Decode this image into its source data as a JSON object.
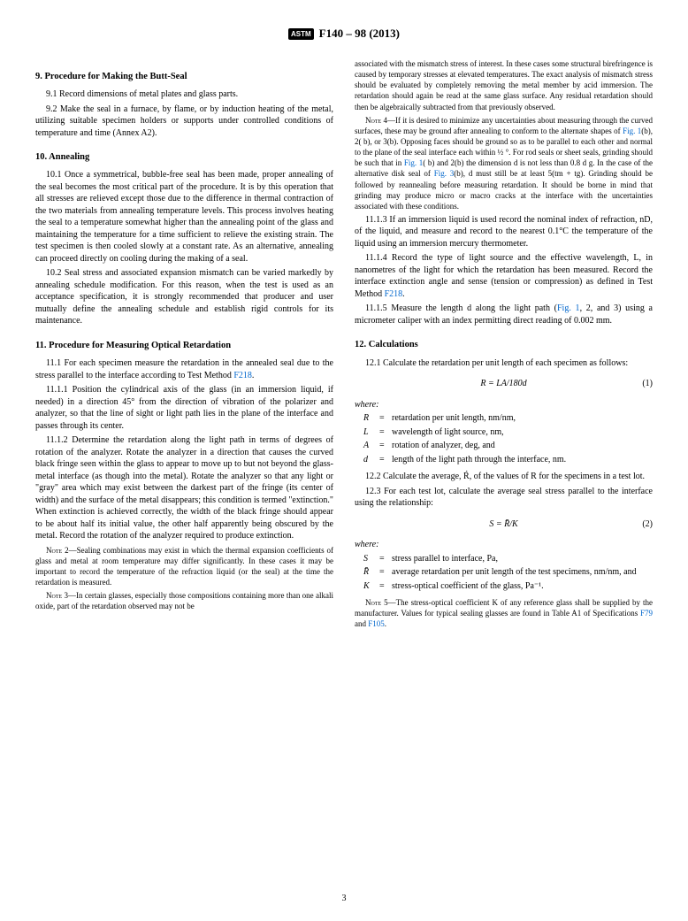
{
  "header": {
    "logo_text": "ASTM",
    "designation": "F140 – 98 (2013)"
  },
  "sections": {
    "s9": {
      "title": "9.  Procedure for Making the Butt-Seal",
      "p1": "9.1  Record dimensions of metal plates and glass parts.",
      "p2": "9.2  Make the seal in a furnace, by flame, or by induction heating of the metal, utilizing suitable specimen holders or supports under controlled conditions of temperature and time (Annex A2)."
    },
    "s10": {
      "title": "10.  Annealing",
      "p1": "10.1  Once a symmetrical, bubble-free seal has been made, proper annealing of the seal becomes the most critical part of the procedure. It is by this operation that all stresses are relieved except those due to the difference in thermal contraction of the two materials from annealing temperature levels. This process involves heating the seal to a temperature somewhat higher than the annealing point of the glass and maintaining the temperature for a time sufficient to relieve the existing strain. The test specimen is then cooled slowly at a constant rate. As an alternative, annealing can proceed directly on cooling during the making of a seal.",
      "p2": "10.2  Seal stress and associated expansion mismatch can be varied markedly by annealing schedule modification. For this reason, when the test is used as an acceptance specification, it is strongly recommended that producer and user mutually define the annealing schedule and establish rigid controls for its maintenance."
    },
    "s11": {
      "title": "11.  Procedure for Measuring Optical Retardation",
      "p1_a": "11.1  For each specimen measure the retardation in the annealed seal due to the stress parallel to the interface according to Test Method ",
      "p1_link": "F218",
      "p1_b": ".",
      "p1_1": "11.1.1  Position the cylindrical axis of the glass (in an immersion liquid, if needed) in a direction 45° from the direction of vibration of the polarizer and analyzer, so that the line of sight or light path lies in the plane of the interface and passes through its center.",
      "p1_2": "11.1.2  Determine the retardation along the light path in terms of degrees of rotation of the analyzer. Rotate the analyzer in a direction that causes the curved black fringe seen within the glass to appear to move up to but not beyond the glass-metal interface (as though into the metal). Rotate the analyzer so that any light or \"gray\" area which may exist between the darkest part of the fringe (its center of width) and the surface of the metal disappears; this condition is termed \"extinction.\" When extinction is achieved correctly, the width of the black fringe should appear to be about half its initial value, the other half apparently being obscured by the metal. Record the rotation of the analyzer required to produce extinction.",
      "note2": "2—Sealing combinations may exist in which the thermal expansion coefficients of glass and metal at room temperature may differ significantly. In these cases it may be important to record the temperature of the refraction liquid (or the seal) at the time the retardation is measured.",
      "note3": "3—In certain glasses, especially those compositions containing more than one alkali oxide, part of the retardation observed may not be",
      "col2_cont": "associated with the mismatch stress of interest. In these cases some structural birefringence is caused by temporary stresses at elevated temperatures. The exact analysis of mismatch stress should be evaluated by completely removing the metal member by acid immersion. The retardation should again be read at the same glass surface. Any residual retardation should then be algebraically subtracted from that previously observed.",
      "note4_a": "4—If it is desired to minimize any uncertainties about measuring through the curved surfaces, these may be ground after annealing to conform to the alternate shapes of ",
      "note4_fig1": "Fig. 1",
      "note4_b": "(b), 2( b), or 3(b). Opposing faces should be ground so as to be parallel to each other and normal to the plane of the seal interface each within ½ °. For rod seals or sheet seals, grinding should be such that in ",
      "note4_fig1b": "Fig. 1",
      "note4_c": "( b) and 2(b) the dimension d is not less than 0.8 d g. In the case of the alternative disk seal of ",
      "note4_fig3": "Fig. 3",
      "note4_d": "(b), d must still be at least 5(tm + tg). Grinding should be followed by reannealing before measuring retardation. It should be borne in mind that grinding may produce micro or macro cracks at the interface with the uncertainties associated with these conditions.",
      "p1_3": "11.1.3  If an immersion liquid is used record the nominal index of refraction, nD, of the liquid, and measure and record to the nearest 0.1°C the temperature of the liquid using an immersion mercury thermometer.",
      "p1_4_a": "11.1.4  Record the type of light source and the effective wavelength, L, in nanometres of the light for which the retardation has been measured. Record the interface extinction angle and sense (tension or compression) as defined in Test Method ",
      "p1_4_link": "F218",
      "p1_4_b": ".",
      "p1_5_a": "11.1.5  Measure the length d along the light path (",
      "p1_5_link": "Fig. 1",
      "p1_5_b": ", 2, and 3) using a micrometer caliper with an index permitting direct reading of 0.002 mm."
    },
    "s12": {
      "title": "12.  Calculations",
      "p1": "12.1  Calculate the retardation per unit length of each specimen as follows:",
      "eq1": "R = LA/180d",
      "eq1_num": "(1)",
      "where": "where:",
      "w1_sym": "R",
      "w1_def": "retardation per unit length, nm/nm,",
      "w2_sym": "L",
      "w2_def": "wavelength of light source, nm,",
      "w3_sym": "A",
      "w3_def": "rotation of analyzer, deg, and",
      "w4_sym": "d",
      "w4_def": "length of the light path through the interface, nm.",
      "p2": "12.2  Calculate the average, Ŕ, of the values of R for the specimens in a test lot.",
      "p3": "12.3  For each test lot, calculate the average seal stress parallel to the interface using the relationship:",
      "eq2": "S = R̄/K",
      "eq2_num": "(2)",
      "w5_sym": "S",
      "w5_def": "stress parallel to interface, Pa,",
      "w6_sym": "R̄",
      "w6_def": "average retardation per unit length of the test specimens, nm/nm, and",
      "w7_sym": "K",
      "w7_def": "stress-optical coefficient of the glass, Pa⁻¹.",
      "note5_a": "5—The stress-optical coefficient K of any reference glass shall be supplied by the manufacturer. Values for typical sealing glasses are found in Table A1 of Specifications ",
      "note5_link1": "F79",
      "note5_mid": " and ",
      "note5_link2": "F105",
      "note5_b": "."
    }
  },
  "page_number": "3"
}
